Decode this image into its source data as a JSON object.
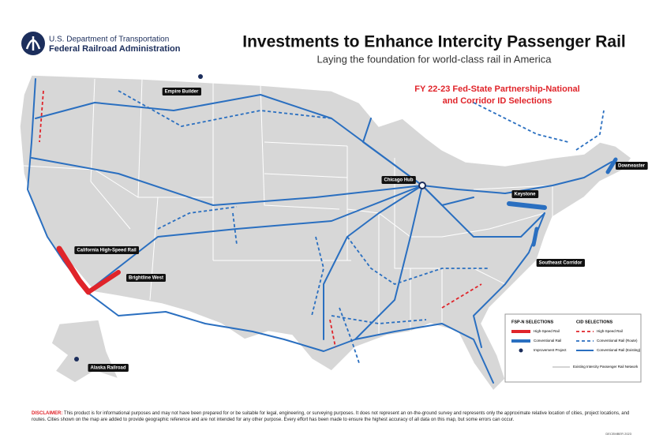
{
  "header": {
    "agency_line1": "U.S. Department of Transportation",
    "agency_line2": "Federal Railroad Administration",
    "title": "Investments to Enhance Intercity Passenger Rail",
    "subtitle": "Laying the foundation for world-class rail in America"
  },
  "selection_title": [
    "FY 22-23 Fed-State Partnership-National",
    "and Corridor ID Selections"
  ],
  "map": {
    "labels": [
      "Empire Builder",
      "Chicago Hub",
      "Downeaster",
      "Keystone",
      "California High-Speed Rail",
      "Brightline West",
      "Southeast Corridor",
      "Alaska Railroad"
    ]
  },
  "legend": {
    "fspn": {
      "title": "FSP-N SELECTIONS",
      "items": [
        "High-Speed Rail",
        "Conventional Rail",
        "Improvement Project"
      ]
    },
    "cid": {
      "title": "CID SELECTIONS",
      "items": [
        "High-Speed Rail",
        "Conventional Rail (Route)",
        "Conventional Rail (Existing)"
      ]
    },
    "network": "Existing Intercity Passenger Rail Network"
  },
  "disclaimer": {
    "label": "DISCLAIMER:",
    "text": "This product is for informational purposes and may not have been prepared for or be suitable for legal, engineering, or surveying purposes. It does not represent an on-the-ground survey and represents only the approximate relative location of cities, project locations, and routes. Cities shown on the map are added to provide geographic reference and are not intended for any other purpose. Every effort has been made to ensure the highest accuracy of all data on this map, but some errors can occur."
  },
  "date": "DECEMBER 2023"
}
